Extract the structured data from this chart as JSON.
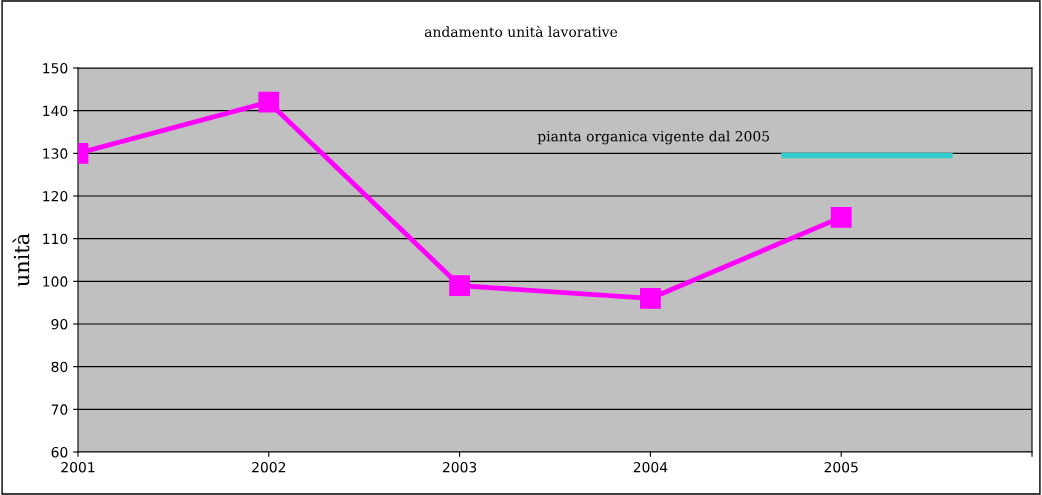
{
  "chart_data": {
    "type": "line",
    "title": "andamento unità lavorative",
    "ylabel": "unità",
    "x": [
      2001,
      2002,
      2003,
      2004,
      2005
    ],
    "series": [
      {
        "color": "#ff00ff",
        "values": [
          130,
          142,
          99,
          96,
          115
        ],
        "marker": "square"
      },
      {
        "name": "pianta organica vigente dal 2005",
        "color": "#33cccc",
        "x": [
          2004.7,
          2005.57
        ],
        "values": [
          129.5,
          129.5
        ],
        "marker": "none"
      }
    ],
    "xlim": [
      2001,
      2006
    ],
    "xticks": [
      2001,
      2002,
      2003,
      2004,
      2005,
      {
        "value": 2006,
        "label": null
      }
    ],
    "ylim": [
      60,
      150
    ],
    "yticks": [
      60,
      70,
      80,
      90,
      100,
      110,
      120,
      130,
      140,
      150
    ],
    "grid": "y",
    "line_style": "solid"
  }
}
